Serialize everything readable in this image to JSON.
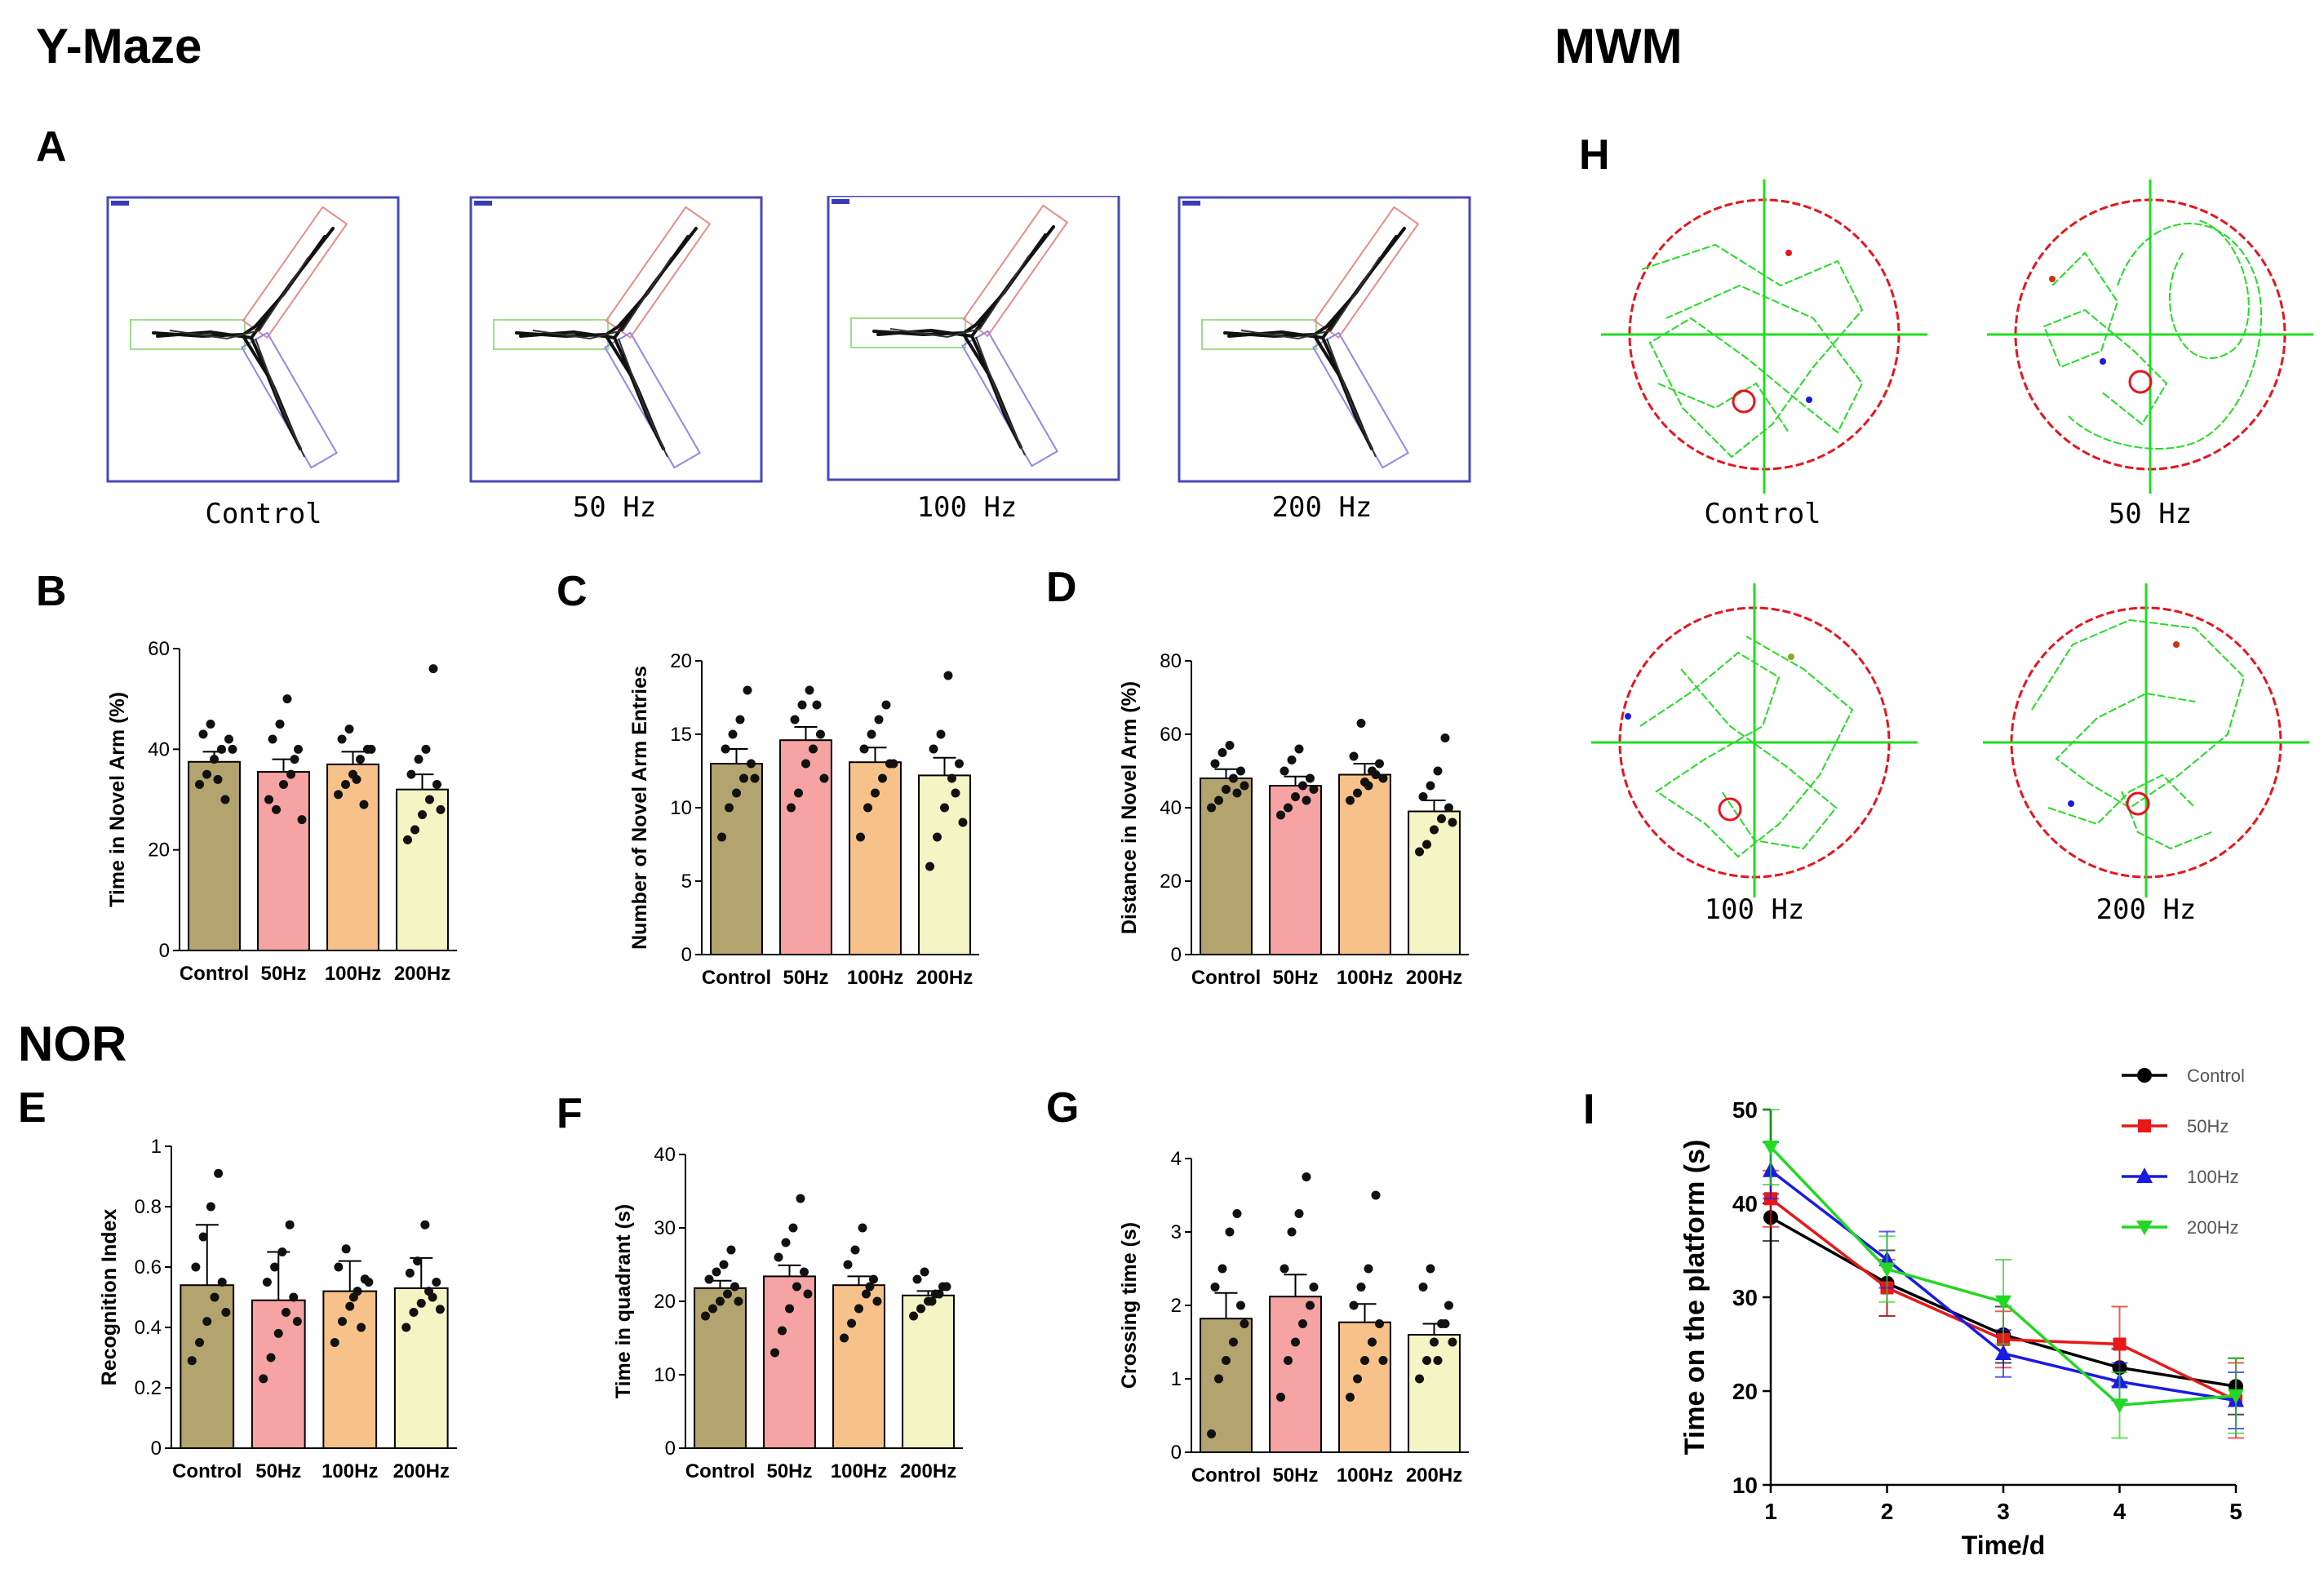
{
  "sections": {
    "ymaze": "Y-Maze",
    "mwm": "MWM",
    "nor": "NOR"
  },
  "panels": {
    "A": "A",
    "B": "B",
    "C": "C",
    "D": "D",
    "E": "E",
    "F": "F",
    "G": "G",
    "H": "H",
    "I": "I"
  },
  "ymaze_tracks": [
    "Control",
    "50 Hz",
    "100 Hz",
    "200 Hz"
  ],
  "mwm_tracks": [
    "Control",
    "50 Hz",
    "100 Hz",
    "200 Hz"
  ],
  "colors": {
    "control": "#b3a36e",
    "hz50": "#f5a3a3",
    "hz100": "#f7c28a",
    "hz200": "#f4f5c4",
    "maze_frame": "#4848b8",
    "pool": "#e8141c",
    "path": "#22dd22",
    "line_control": "#000000",
    "line_50": "#e81818",
    "line_100": "#1a1ae6",
    "line_200": "#22d822"
  },
  "chart_data": [
    {
      "id": "B",
      "type": "bar",
      "ylabel": "Time in Novel Arm (%)",
      "ylim": [
        0,
        60
      ],
      "ticks": [
        0,
        20,
        40,
        60
      ],
      "categories": [
        "Control",
        "50Hz",
        "100Hz",
        "200Hz"
      ],
      "values": [
        37.5,
        35.5,
        37,
        32
      ],
      "errors": [
        2,
        2.5,
        2.5,
        3
      ],
      "points": [
        [
          33,
          35,
          38,
          40,
          42,
          43,
          45,
          34,
          30,
          40
        ],
        [
          30,
          28,
          33,
          35,
          40,
          42,
          45,
          50,
          38,
          26
        ],
        [
          31,
          33,
          35,
          38,
          40,
          42,
          44,
          34,
          29,
          40
        ],
        [
          22,
          24,
          27,
          30,
          33,
          35,
          38,
          40,
          56,
          28
        ]
      ]
    },
    {
      "id": "C",
      "type": "bar",
      "ylabel": "Number of Novel Arm Entries",
      "ylim": [
        0,
        20
      ],
      "ticks": [
        0,
        5,
        10,
        15,
        20
      ],
      "categories": [
        "Control",
        "50Hz",
        "100Hz",
        "200Hz"
      ],
      "values": [
        13,
        14.6,
        13.1,
        12.2
      ],
      "errors": [
        1,
        0.9,
        1,
        1.2
      ],
      "points": [
        [
          8,
          10,
          11,
          12,
          13,
          14,
          15,
          16,
          18,
          12
        ],
        [
          10,
          11,
          13,
          14,
          15,
          16,
          17,
          18,
          17,
          12
        ],
        [
          8,
          10,
          11,
          12,
          13,
          14,
          15,
          16,
          17,
          13
        ],
        [
          6,
          8,
          10,
          12,
          13,
          14,
          15,
          19,
          11,
          9
        ]
      ]
    },
    {
      "id": "D",
      "type": "bar",
      "ylabel": "Distance in Novel Arm (%)",
      "ylim": [
        0,
        80
      ],
      "ticks": [
        0,
        20,
        40,
        60,
        80
      ],
      "categories": [
        "Control",
        "50Hz",
        "100Hz",
        "200Hz"
      ],
      "values": [
        48,
        46,
        49,
        39
      ],
      "errors": [
        2.5,
        2.5,
        3,
        3
      ],
      "points": [
        [
          40,
          42,
          45,
          48,
          50,
          52,
          55,
          57,
          44,
          46
        ],
        [
          38,
          40,
          43,
          46,
          48,
          50,
          53,
          56,
          42,
          45
        ],
        [
          42,
          44,
          47,
          50,
          52,
          54,
          63,
          46,
          49,
          48
        ],
        [
          28,
          30,
          34,
          37,
          40,
          43,
          46,
          50,
          59,
          36
        ]
      ]
    },
    {
      "id": "E",
      "type": "bar",
      "ylabel": "Recognition Index",
      "ylim": [
        0,
        1.0
      ],
      "ticks": [
        0.0,
        0.2,
        0.4,
        0.6,
        0.8,
        1.0
      ],
      "categories": [
        "Control",
        "50Hz",
        "100Hz",
        "200Hz"
      ],
      "values": [
        0.54,
        0.49,
        0.52,
        0.53
      ],
      "errors": [
        0.2,
        0.16,
        0.1,
        0.1
      ],
      "points": [
        [
          0.29,
          0.35,
          0.42,
          0.5,
          0.55,
          0.6,
          0.7,
          0.8,
          0.91,
          0.45
        ],
        [
          0.23,
          0.3,
          0.38,
          0.45,
          0.5,
          0.55,
          0.6,
          0.65,
          0.74,
          0.42
        ],
        [
          0.35,
          0.42,
          0.47,
          0.52,
          0.56,
          0.6,
          0.66,
          0.5,
          0.4,
          0.55
        ],
        [
          0.4,
          0.45,
          0.48,
          0.52,
          0.55,
          0.58,
          0.62,
          0.74,
          0.5,
          0.46
        ]
      ]
    },
    {
      "id": "F",
      "type": "bar",
      "ylabel": "Time in quadrant (s)",
      "ylim": [
        0,
        40
      ],
      "ticks": [
        0,
        10,
        20,
        30,
        40
      ],
      "categories": [
        "Control",
        "50Hz",
        "100Hz",
        "200Hz"
      ],
      "values": [
        21.8,
        23.4,
        22.2,
        20.8
      ],
      "errors": [
        1,
        1.5,
        1.2,
        0.6
      ],
      "points": [
        [
          18,
          19,
          20,
          21,
          22,
          23,
          24,
          25,
          27,
          20
        ],
        [
          13,
          16,
          19,
          22,
          24,
          26,
          28,
          30,
          34,
          21
        ],
        [
          15,
          17,
          19,
          21,
          23,
          25,
          27,
          30,
          22,
          20
        ],
        [
          18,
          19,
          20,
          21,
          22,
          23,
          24,
          20,
          21,
          22
        ]
      ]
    },
    {
      "id": "G",
      "type": "bar",
      "ylabel": "Crossing time (s)",
      "ylim": [
        0,
        4
      ],
      "ticks": [
        0,
        1,
        2,
        3,
        4
      ],
      "categories": [
        "Control",
        "50Hz",
        "100Hz",
        "200Hz"
      ],
      "values": [
        1.82,
        2.12,
        1.77,
        1.6
      ],
      "errors": [
        0.35,
        0.3,
        0.25,
        0.15
      ],
      "points": [
        [
          0.25,
          1,
          1.25,
          1.5,
          2,
          2.25,
          2.5,
          3,
          3.25,
          1.75
        ],
        [
          0.75,
          1.25,
          1.5,
          1.75,
          2,
          2.5,
          3,
          3.25,
          3.75,
          2.25
        ],
        [
          0.75,
          1,
          1.25,
          1.5,
          1.75,
          2,
          2.25,
          2.5,
          3.5,
          1.25
        ],
        [
          1,
          1.25,
          1.5,
          1.75,
          2,
          2.25,
          2.5,
          1.25,
          1.75,
          1.5
        ]
      ]
    },
    {
      "id": "I",
      "type": "line",
      "xlabel": "Time/d",
      "ylabel": "Time on the platform (s)",
      "ylim": [
        10,
        50
      ],
      "xlim": [
        1,
        5
      ],
      "x": [
        1,
        2,
        3,
        4,
        5
      ],
      "yticks": [
        10,
        20,
        30,
        40,
        50
      ],
      "series": [
        {
          "name": "Control",
          "values": [
            38.5,
            31.5,
            26,
            22.5,
            20.5
          ],
          "errors": [
            2.5,
            3.5,
            3,
            2,
            3
          ]
        },
        {
          "name": "50Hz",
          "values": [
            40.5,
            31,
            25.5,
            25,
            19
          ],
          "errors": [
            3,
            3,
            3,
            4,
            4
          ]
        },
        {
          "name": "100Hz",
          "values": [
            43.5,
            34,
            24,
            21,
            19
          ],
          "errors": [
            3,
            3,
            2.5,
            2,
            3
          ]
        },
        {
          "name": "200Hz",
          "values": [
            46,
            33,
            29.5,
            18.5,
            19.5
          ],
          "errors": [
            4,
            3.5,
            4.5,
            3.5,
            4
          ]
        }
      ],
      "legend": "top-right"
    }
  ]
}
